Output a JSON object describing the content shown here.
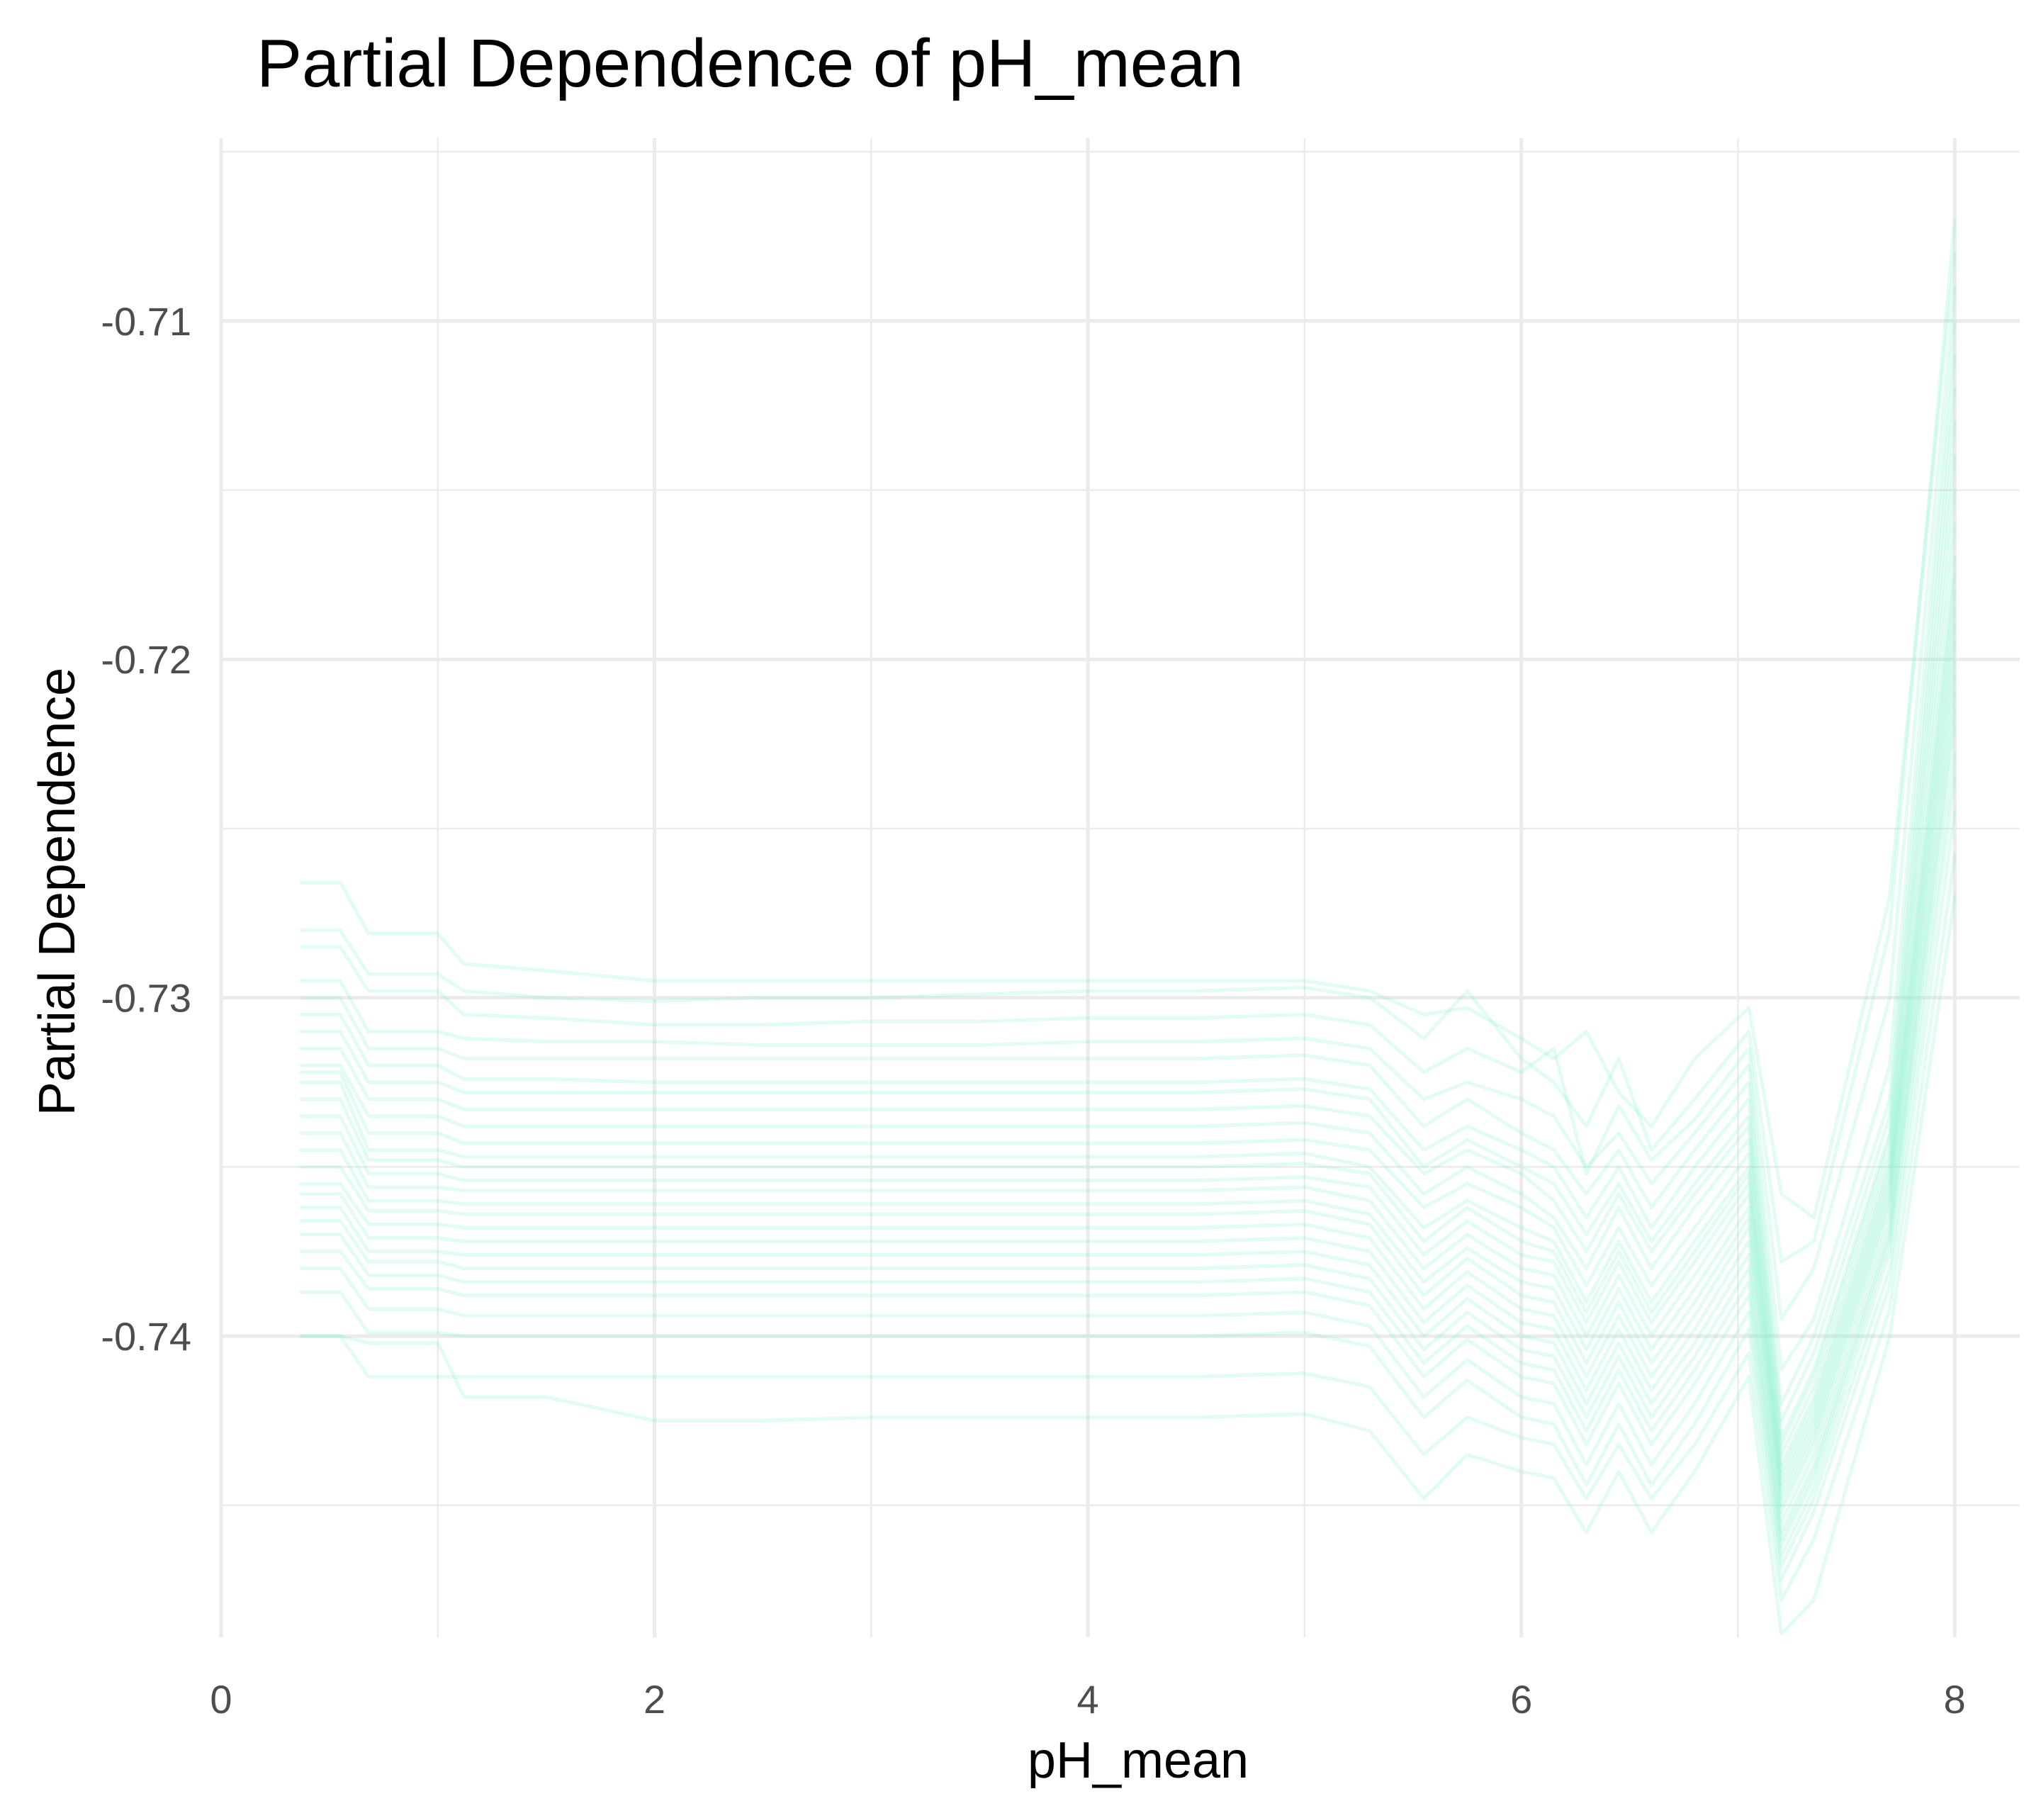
{
  "chart_data": {
    "type": "line",
    "title": "Partial Dependence of pH_mean",
    "xlabel": "pH_mean",
    "ylabel": "Partial Dependence",
    "xlim": [
      0,
      8.3
    ],
    "ylim": [
      -0.7489,
      -0.7046
    ],
    "x_ticks": [
      0,
      2,
      4,
      6,
      8
    ],
    "x_tick_labels": [
      "0",
      "2",
      "4",
      "6",
      "8"
    ],
    "y_ticks": [
      -0.74,
      -0.73,
      -0.72,
      -0.71
    ],
    "y_tick_labels": [
      "-0.74",
      "-0.73",
      "-0.72",
      "-0.71"
    ],
    "grid": true,
    "legend": "none",
    "line_color": "#7FF0C8",
    "line_opacity": 0.22,
    "x": [
      0.37,
      0.55,
      0.68,
      1.0,
      1.12,
      1.5,
      2.0,
      2.5,
      3.0,
      3.5,
      4.0,
      4.5,
      5.0,
      5.3,
      5.55,
      5.75,
      6.0,
      6.15,
      6.3,
      6.45,
      6.6,
      6.8,
      7.05,
      7.2,
      7.35,
      7.7,
      8.0
    ],
    "series": [
      {
        "values": [
          -0.7266,
          -0.7266,
          -0.7281,
          -0.7281,
          -0.729,
          -0.7292,
          -0.7295,
          -0.7295,
          -0.7295,
          -0.7295,
          -0.7295,
          -0.7295,
          -0.7295,
          -0.7298,
          -0.7305,
          -0.7303,
          -0.7312,
          -0.7318,
          -0.731,
          -0.7328,
          -0.7338,
          -0.7318,
          -0.7303,
          -0.7358,
          -0.7365,
          -0.727,
          -0.708
        ]
      },
      {
        "values": [
          -0.728,
          -0.728,
          -0.7293,
          -0.7293,
          -0.7298,
          -0.73,
          -0.7301,
          -0.73,
          -0.73,
          -0.7299,
          -0.7298,
          -0.7298,
          -0.7297,
          -0.73,
          -0.7312,
          -0.7298,
          -0.7318,
          -0.7325,
          -0.7338,
          -0.7318,
          -0.7345,
          -0.733,
          -0.731,
          -0.7378,
          -0.7372,
          -0.728,
          -0.707
        ]
      },
      {
        "values": [
          -0.7285,
          -0.7285,
          -0.7298,
          -0.7298,
          -0.7305,
          -0.7306,
          -0.7308,
          -0.7308,
          -0.7307,
          -0.7307,
          -0.7306,
          -0.7306,
          -0.7305,
          -0.7308,
          -0.7322,
          -0.7315,
          -0.7322,
          -0.7315,
          -0.7352,
          -0.7332,
          -0.7348,
          -0.7336,
          -0.7315,
          -0.7395,
          -0.738,
          -0.73,
          -0.709
        ]
      },
      {
        "values": [
          -0.7295,
          -0.7295,
          -0.731,
          -0.731,
          -0.7312,
          -0.7313,
          -0.7313,
          -0.7314,
          -0.7314,
          -0.7314,
          -0.7313,
          -0.7313,
          -0.7312,
          -0.7315,
          -0.733,
          -0.7325,
          -0.733,
          -0.7335,
          -0.735,
          -0.734,
          -0.7355,
          -0.734,
          -0.732,
          -0.741,
          -0.7395,
          -0.732,
          -0.71
        ]
      },
      {
        "values": [
          -0.73,
          -0.73,
          -0.7315,
          -0.7315,
          -0.7318,
          -0.7318,
          -0.7318,
          -0.7318,
          -0.7318,
          -0.7318,
          -0.7318,
          -0.7318,
          -0.7317,
          -0.732,
          -0.7338,
          -0.733,
          -0.734,
          -0.7345,
          -0.7358,
          -0.7345,
          -0.7362,
          -0.7345,
          -0.7325,
          -0.742,
          -0.74,
          -0.733,
          -0.711
        ]
      },
      {
        "values": [
          -0.7305,
          -0.7305,
          -0.732,
          -0.732,
          -0.7324,
          -0.7324,
          -0.7325,
          -0.7325,
          -0.7325,
          -0.7325,
          -0.7325,
          -0.7325,
          -0.7324,
          -0.7327,
          -0.7345,
          -0.7338,
          -0.7345,
          -0.735,
          -0.7365,
          -0.735,
          -0.7368,
          -0.735,
          -0.733,
          -0.7425,
          -0.7405,
          -0.7335,
          -0.712
        ]
      },
      {
        "values": [
          -0.731,
          -0.731,
          -0.7325,
          -0.7325,
          -0.7328,
          -0.7328,
          -0.7328,
          -0.7328,
          -0.7328,
          -0.7328,
          -0.7328,
          -0.7328,
          -0.7327,
          -0.733,
          -0.735,
          -0.7342,
          -0.735,
          -0.7355,
          -0.737,
          -0.7355,
          -0.7372,
          -0.7355,
          -0.7335,
          -0.743,
          -0.741,
          -0.734,
          -0.713
        ]
      },
      {
        "values": [
          -0.7315,
          -0.7315,
          -0.733,
          -0.733,
          -0.7333,
          -0.7333,
          -0.7333,
          -0.7333,
          -0.7333,
          -0.7333,
          -0.7333,
          -0.7333,
          -0.7332,
          -0.7335,
          -0.7352,
          -0.7345,
          -0.7352,
          -0.736,
          -0.7375,
          -0.7358,
          -0.7375,
          -0.7358,
          -0.7338,
          -0.7432,
          -0.7412,
          -0.7342,
          -0.714
        ]
      },
      {
        "values": [
          -0.732,
          -0.732,
          -0.7335,
          -0.7335,
          -0.7338,
          -0.7338,
          -0.7338,
          -0.7338,
          -0.7338,
          -0.7338,
          -0.7338,
          -0.7338,
          -0.7337,
          -0.734,
          -0.7358,
          -0.735,
          -0.7358,
          -0.7365,
          -0.738,
          -0.7362,
          -0.738,
          -0.7362,
          -0.7342,
          -0.7435,
          -0.7415,
          -0.7345,
          -0.715
        ]
      },
      {
        "values": [
          -0.7322,
          -0.7322,
          -0.734,
          -0.734,
          -0.7343,
          -0.7343,
          -0.7343,
          -0.7343,
          -0.7343,
          -0.7343,
          -0.7343,
          -0.7343,
          -0.7342,
          -0.7345,
          -0.7362,
          -0.7355,
          -0.7362,
          -0.7368,
          -0.7385,
          -0.7368,
          -0.7385,
          -0.7368,
          -0.7346,
          -0.7438,
          -0.7418,
          -0.7348,
          -0.716
        ]
      },
      {
        "values": [
          -0.7325,
          -0.7325,
          -0.7345,
          -0.7345,
          -0.7347,
          -0.7347,
          -0.7347,
          -0.7347,
          -0.7347,
          -0.7347,
          -0.7347,
          -0.7347,
          -0.7346,
          -0.735,
          -0.7368,
          -0.736,
          -0.7368,
          -0.7372,
          -0.739,
          -0.7372,
          -0.739,
          -0.7372,
          -0.735,
          -0.744,
          -0.742,
          -0.735,
          -0.717
        ]
      },
      {
        "values": [
          -0.733,
          -0.733,
          -0.7348,
          -0.7348,
          -0.735,
          -0.735,
          -0.735,
          -0.735,
          -0.735,
          -0.735,
          -0.735,
          -0.735,
          -0.7349,
          -0.7352,
          -0.7372,
          -0.7362,
          -0.7372,
          -0.7375,
          -0.7393,
          -0.7375,
          -0.7393,
          -0.7375,
          -0.7352,
          -0.7442,
          -0.7422,
          -0.7352,
          -0.7175
        ]
      },
      {
        "values": [
          -0.7335,
          -0.7335,
          -0.7352,
          -0.7352,
          -0.7354,
          -0.7354,
          -0.7354,
          -0.7354,
          -0.7354,
          -0.7354,
          -0.7354,
          -0.7354,
          -0.7353,
          -0.7356,
          -0.7376,
          -0.7366,
          -0.7376,
          -0.7378,
          -0.7396,
          -0.7378,
          -0.7396,
          -0.7378,
          -0.7355,
          -0.7444,
          -0.7424,
          -0.7354,
          -0.718
        ]
      },
      {
        "values": [
          -0.734,
          -0.734,
          -0.7356,
          -0.7356,
          -0.7357,
          -0.7357,
          -0.7357,
          -0.7357,
          -0.7357,
          -0.7357,
          -0.7357,
          -0.7357,
          -0.7356,
          -0.736,
          -0.738,
          -0.737,
          -0.738,
          -0.7382,
          -0.74,
          -0.7382,
          -0.74,
          -0.7382,
          -0.7358,
          -0.7446,
          -0.7426,
          -0.7356,
          -0.7185
        ]
      },
      {
        "values": [
          -0.7345,
          -0.7345,
          -0.736,
          -0.736,
          -0.7361,
          -0.7361,
          -0.7361,
          -0.7361,
          -0.7361,
          -0.7361,
          -0.7361,
          -0.7361,
          -0.736,
          -0.7364,
          -0.7384,
          -0.7374,
          -0.7384,
          -0.7386,
          -0.7404,
          -0.7386,
          -0.7404,
          -0.7386,
          -0.7362,
          -0.7448,
          -0.7428,
          -0.7358,
          -0.719
        ]
      },
      {
        "values": [
          -0.735,
          -0.735,
          -0.7363,
          -0.7363,
          -0.7364,
          -0.7364,
          -0.7364,
          -0.7364,
          -0.7364,
          -0.7364,
          -0.7364,
          -0.7364,
          -0.7363,
          -0.7367,
          -0.7388,
          -0.7377,
          -0.7388,
          -0.739,
          -0.7408,
          -0.739,
          -0.7408,
          -0.739,
          -0.7365,
          -0.745,
          -0.743,
          -0.736,
          -0.7195
        ]
      },
      {
        "values": [
          -0.7355,
          -0.7355,
          -0.7367,
          -0.7367,
          -0.7368,
          -0.7368,
          -0.7368,
          -0.7368,
          -0.7368,
          -0.7368,
          -0.7368,
          -0.7368,
          -0.7367,
          -0.7371,
          -0.7392,
          -0.7381,
          -0.7392,
          -0.7394,
          -0.7412,
          -0.7394,
          -0.7412,
          -0.7394,
          -0.7368,
          -0.7452,
          -0.7432,
          -0.7362,
          -0.72
        ]
      },
      {
        "values": [
          -0.7358,
          -0.7358,
          -0.7371,
          -0.7371,
          -0.7372,
          -0.7372,
          -0.7372,
          -0.7372,
          -0.7372,
          -0.7372,
          -0.7372,
          -0.7372,
          -0.7371,
          -0.7375,
          -0.7396,
          -0.7385,
          -0.7396,
          -0.7398,
          -0.7416,
          -0.7398,
          -0.7416,
          -0.7398,
          -0.7372,
          -0.7455,
          -0.7435,
          -0.7365,
          -0.7205
        ]
      },
      {
        "values": [
          -0.7362,
          -0.7362,
          -0.7375,
          -0.7375,
          -0.7376,
          -0.7376,
          -0.7376,
          -0.7376,
          -0.7376,
          -0.7376,
          -0.7376,
          -0.7376,
          -0.7375,
          -0.7379,
          -0.74,
          -0.7389,
          -0.74,
          -0.7402,
          -0.742,
          -0.7402,
          -0.742,
          -0.7402,
          -0.7376,
          -0.7458,
          -0.7438,
          -0.7368,
          -0.721
        ]
      },
      {
        "values": [
          -0.7366,
          -0.7366,
          -0.7378,
          -0.7378,
          -0.738,
          -0.738,
          -0.738,
          -0.738,
          -0.738,
          -0.738,
          -0.738,
          -0.738,
          -0.7379,
          -0.7383,
          -0.7404,
          -0.7393,
          -0.7404,
          -0.7406,
          -0.7424,
          -0.7406,
          -0.7424,
          -0.7406,
          -0.738,
          -0.746,
          -0.744,
          -0.737,
          -0.7215
        ]
      },
      {
        "values": [
          -0.737,
          -0.737,
          -0.7382,
          -0.7382,
          -0.7384,
          -0.7384,
          -0.7384,
          -0.7384,
          -0.7384,
          -0.7384,
          -0.7384,
          -0.7384,
          -0.7383,
          -0.7387,
          -0.7408,
          -0.7397,
          -0.7408,
          -0.741,
          -0.7428,
          -0.741,
          -0.7428,
          -0.741,
          -0.7384,
          -0.7462,
          -0.7442,
          -0.7372,
          -0.722
        ]
      },
      {
        "values": [
          -0.7375,
          -0.7375,
          -0.7386,
          -0.7386,
          -0.7388,
          -0.7388,
          -0.7388,
          -0.7388,
          -0.7388,
          -0.7388,
          -0.7388,
          -0.7388,
          -0.7387,
          -0.7391,
          -0.7412,
          -0.7401,
          -0.7412,
          -0.7414,
          -0.7432,
          -0.7414,
          -0.7432,
          -0.7414,
          -0.7388,
          -0.7465,
          -0.7445,
          -0.7375,
          -0.7228
        ]
      },
      {
        "values": [
          -0.738,
          -0.738,
          -0.7392,
          -0.7392,
          -0.7394,
          -0.7394,
          -0.7394,
          -0.7394,
          -0.7394,
          -0.7394,
          -0.7394,
          -0.7394,
          -0.7393,
          -0.7397,
          -0.7418,
          -0.7407,
          -0.7418,
          -0.742,
          -0.7438,
          -0.742,
          -0.7438,
          -0.742,
          -0.7393,
          -0.7468,
          -0.7448,
          -0.738,
          -0.7235
        ]
      },
      {
        "values": [
          -0.7387,
          -0.7387,
          -0.7399,
          -0.7399,
          -0.74,
          -0.74,
          -0.74,
          -0.74,
          -0.74,
          -0.74,
          -0.74,
          -0.74,
          -0.7399,
          -0.7403,
          -0.7424,
          -0.7413,
          -0.7424,
          -0.7426,
          -0.7444,
          -0.7426,
          -0.7444,
          -0.7426,
          -0.7398,
          -0.7472,
          -0.7452,
          -0.7385,
          -0.7245
        ]
      },
      {
        "values": [
          -0.74,
          -0.74,
          -0.7412,
          -0.7412,
          -0.7412,
          -0.7412,
          -0.7412,
          -0.7412,
          -0.7412,
          -0.7412,
          -0.7412,
          -0.7412,
          -0.7411,
          -0.7415,
          -0.7435,
          -0.7424,
          -0.743,
          -0.7432,
          -0.7448,
          -0.7432,
          -0.7448,
          -0.7432,
          -0.7405,
          -0.7478,
          -0.746,
          -0.7392,
          -0.7258
        ]
      },
      {
        "values": [
          -0.74,
          -0.74,
          -0.7402,
          -0.7402,
          -0.7418,
          -0.7418,
          -0.7425,
          -0.7425,
          -0.7424,
          -0.7424,
          -0.7424,
          -0.7424,
          -0.7423,
          -0.7428,
          -0.7448,
          -0.7435,
          -0.744,
          -0.7442,
          -0.7458,
          -0.744,
          -0.7458,
          -0.744,
          -0.7412,
          -0.7488,
          -0.7478,
          -0.74,
          -0.727
        ]
      }
    ]
  }
}
